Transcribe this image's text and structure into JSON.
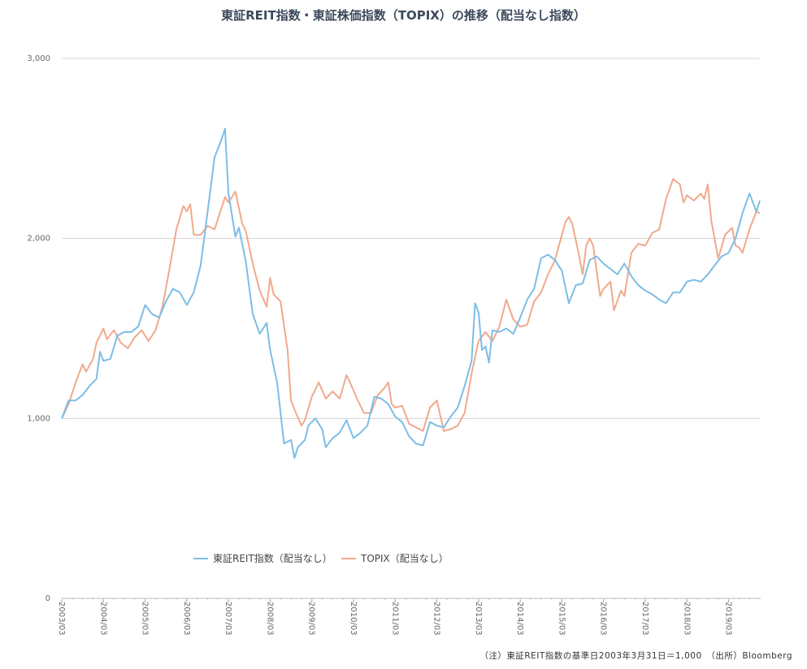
{
  "chart_data": {
    "type": "line",
    "title": "東証REIT指数・東証株価指数（TOPIX）の推移（配当なし指数）",
    "note": "（注）東証REIT指数の基準日2003年3月31日＝1,000　（出所）Bloomberg",
    "ylim": [
      0,
      3000
    ],
    "y_ticks": [
      0,
      1000,
      2000,
      3000
    ],
    "y_tick_labels": [
      "0",
      "1,000",
      "2,000",
      "3,000"
    ],
    "x_tick_labels": [
      "2003/03",
      "2004/03",
      "2005/03",
      "2006/03",
      "2007/03",
      "2008/03",
      "2009/03",
      "2010/03",
      "2011/03",
      "2012/03",
      "2013/03",
      "2014/03",
      "2015/03",
      "2016/03",
      "2017/03",
      "2018/03",
      "2019/03"
    ],
    "x_start": "2003-03",
    "x_end": "2019-12",
    "grid": true,
    "legend_position": "bottom",
    "series": [
      {
        "name": "東証REIT指数（配当なし）",
        "color": "#7dbde6",
        "points": [
          [
            "2003-03",
            1000
          ],
          [
            "2003-05",
            1100
          ],
          [
            "2003-07",
            1100
          ],
          [
            "2003-09",
            1130
          ],
          [
            "2003-11",
            1180
          ],
          [
            "2004-01",
            1220
          ],
          [
            "2004-02",
            1370
          ],
          [
            "2004-03",
            1320
          ],
          [
            "2004-05",
            1330
          ],
          [
            "2004-07",
            1460
          ],
          [
            "2004-09",
            1480
          ],
          [
            "2004-11",
            1480
          ],
          [
            "2005-01",
            1510
          ],
          [
            "2005-03",
            1630
          ],
          [
            "2005-05",
            1580
          ],
          [
            "2005-07",
            1560
          ],
          [
            "2005-09",
            1650
          ],
          [
            "2005-11",
            1720
          ],
          [
            "2006-01",
            1700
          ],
          [
            "2006-03",
            1630
          ],
          [
            "2006-05",
            1700
          ],
          [
            "2006-07",
            1850
          ],
          [
            "2006-09",
            2150
          ],
          [
            "2006-11",
            2450
          ],
          [
            "2007-01",
            2550
          ],
          [
            "2007-02",
            2610
          ],
          [
            "2007-03",
            2250
          ],
          [
            "2007-05",
            2010
          ],
          [
            "2007-06",
            2060
          ],
          [
            "2007-08",
            1870
          ],
          [
            "2007-10",
            1580
          ],
          [
            "2007-12",
            1470
          ],
          [
            "2008-02",
            1530
          ],
          [
            "2008-03",
            1380
          ],
          [
            "2008-05",
            1200
          ],
          [
            "2008-07",
            860
          ],
          [
            "2008-09",
            880
          ],
          [
            "2008-10",
            780
          ],
          [
            "2008-11",
            840
          ],
          [
            "2009-01",
            880
          ],
          [
            "2009-02",
            960
          ],
          [
            "2009-04",
            1000
          ],
          [
            "2009-06",
            940
          ],
          [
            "2009-07",
            840
          ],
          [
            "2009-09",
            890
          ],
          [
            "2009-11",
            920
          ],
          [
            "2010-01",
            990
          ],
          [
            "2010-03",
            890
          ],
          [
            "2010-05",
            920
          ],
          [
            "2010-07",
            960
          ],
          [
            "2010-09",
            1120
          ],
          [
            "2010-11",
            1110
          ],
          [
            "2011-01",
            1080
          ],
          [
            "2011-03",
            1010
          ],
          [
            "2011-05",
            980
          ],
          [
            "2011-07",
            900
          ],
          [
            "2011-09",
            860
          ],
          [
            "2011-11",
            850
          ],
          [
            "2012-01",
            980
          ],
          [
            "2012-03",
            960
          ],
          [
            "2012-05",
            950
          ],
          [
            "2012-07",
            1010
          ],
          [
            "2012-09",
            1060
          ],
          [
            "2012-11",
            1180
          ],
          [
            "2013-01",
            1320
          ],
          [
            "2013-02",
            1640
          ],
          [
            "2013-03",
            1590
          ],
          [
            "2013-04",
            1380
          ],
          [
            "2013-05",
            1400
          ],
          [
            "2013-06",
            1310
          ],
          [
            "2013-07",
            1490
          ],
          [
            "2013-09",
            1480
          ],
          [
            "2013-11",
            1500
          ],
          [
            "2014-01",
            1470
          ],
          [
            "2014-03",
            1560
          ],
          [
            "2014-05",
            1660
          ],
          [
            "2014-07",
            1720
          ],
          [
            "2014-09",
            1890
          ],
          [
            "2014-11",
            1910
          ],
          [
            "2015-01",
            1880
          ],
          [
            "2015-03",
            1820
          ],
          [
            "2015-05",
            1640
          ],
          [
            "2015-07",
            1740
          ],
          [
            "2015-09",
            1750
          ],
          [
            "2015-11",
            1880
          ],
          [
            "2016-01",
            1900
          ],
          [
            "2016-03",
            1860
          ],
          [
            "2016-05",
            1830
          ],
          [
            "2016-07",
            1800
          ],
          [
            "2016-09",
            1860
          ],
          [
            "2016-11",
            1790
          ],
          [
            "2017-01",
            1740
          ],
          [
            "2017-03",
            1710
          ],
          [
            "2017-05",
            1690
          ],
          [
            "2017-07",
            1660
          ],
          [
            "2017-09",
            1640
          ],
          [
            "2017-11",
            1700
          ],
          [
            "2018-01",
            1700
          ],
          [
            "2018-03",
            1760
          ],
          [
            "2018-05",
            1770
          ],
          [
            "2018-07",
            1760
          ],
          [
            "2018-09",
            1800
          ],
          [
            "2018-11",
            1850
          ],
          [
            "2019-01",
            1900
          ],
          [
            "2019-03",
            1920
          ],
          [
            "2019-05",
            2000
          ],
          [
            "2019-07",
            2140
          ],
          [
            "2019-09",
            2250
          ],
          [
            "2019-11",
            2150
          ],
          [
            "2019-12",
            2210
          ]
        ]
      },
      {
        "name": "TOPIX（配当なし）",
        "color": "#f0a98c",
        "points": [
          [
            "2003-03",
            1000
          ],
          [
            "2003-05",
            1080
          ],
          [
            "2003-07",
            1200
          ],
          [
            "2003-09",
            1300
          ],
          [
            "2003-10",
            1260
          ],
          [
            "2003-12",
            1330
          ],
          [
            "2004-01",
            1420
          ],
          [
            "2004-03",
            1500
          ],
          [
            "2004-04",
            1440
          ],
          [
            "2004-06",
            1490
          ],
          [
            "2004-08",
            1420
          ],
          [
            "2004-10",
            1390
          ],
          [
            "2004-12",
            1450
          ],
          [
            "2005-02",
            1490
          ],
          [
            "2005-04",
            1430
          ],
          [
            "2005-06",
            1490
          ],
          [
            "2005-08",
            1620
          ],
          [
            "2005-10",
            1830
          ],
          [
            "2005-12",
            2050
          ],
          [
            "2006-02",
            2180
          ],
          [
            "2006-03",
            2150
          ],
          [
            "2006-04",
            2190
          ],
          [
            "2006-05",
            2020
          ],
          [
            "2006-07",
            2020
          ],
          [
            "2006-09",
            2070
          ],
          [
            "2006-11",
            2050
          ],
          [
            "2007-01",
            2170
          ],
          [
            "2007-02",
            2230
          ],
          [
            "2007-03",
            2200
          ],
          [
            "2007-05",
            2260
          ],
          [
            "2007-07",
            2080
          ],
          [
            "2007-08",
            2040
          ],
          [
            "2007-10",
            1860
          ],
          [
            "2007-12",
            1710
          ],
          [
            "2008-02",
            1620
          ],
          [
            "2008-03",
            1780
          ],
          [
            "2008-04",
            1690
          ],
          [
            "2008-06",
            1650
          ],
          [
            "2008-08",
            1380
          ],
          [
            "2008-09",
            1100
          ],
          [
            "2008-10",
            1050
          ],
          [
            "2008-12",
            960
          ],
          [
            "2009-01",
            990
          ],
          [
            "2009-03",
            1120
          ],
          [
            "2009-05",
            1200
          ],
          [
            "2009-07",
            1110
          ],
          [
            "2009-09",
            1150
          ],
          [
            "2009-11",
            1110
          ],
          [
            "2010-01",
            1240
          ],
          [
            "2010-02",
            1200
          ],
          [
            "2010-04",
            1110
          ],
          [
            "2010-06",
            1030
          ],
          [
            "2010-08",
            1030
          ],
          [
            "2010-10",
            1130
          ],
          [
            "2010-12",
            1170
          ],
          [
            "2011-01",
            1200
          ],
          [
            "2011-02",
            1080
          ],
          [
            "2011-03",
            1060
          ],
          [
            "2011-05",
            1070
          ],
          [
            "2011-07",
            970
          ],
          [
            "2011-09",
            950
          ],
          [
            "2011-11",
            930
          ],
          [
            "2012-01",
            1060
          ],
          [
            "2012-03",
            1100
          ],
          [
            "2012-05",
            930
          ],
          [
            "2012-07",
            940
          ],
          [
            "2012-09",
            960
          ],
          [
            "2012-11",
            1030
          ],
          [
            "2013-01",
            1250
          ],
          [
            "2013-03",
            1430
          ],
          [
            "2013-05",
            1480
          ],
          [
            "2013-07",
            1430
          ],
          [
            "2013-09",
            1510
          ],
          [
            "2013-11",
            1660
          ],
          [
            "2014-01",
            1550
          ],
          [
            "2014-03",
            1510
          ],
          [
            "2014-05",
            1520
          ],
          [
            "2014-07",
            1650
          ],
          [
            "2014-09",
            1700
          ],
          [
            "2014-11",
            1800
          ],
          [
            "2015-01",
            1880
          ],
          [
            "2015-03",
            2020
          ],
          [
            "2015-04",
            2090
          ],
          [
            "2015-05",
            2120
          ],
          [
            "2015-06",
            2080
          ],
          [
            "2015-08",
            1900
          ],
          [
            "2015-09",
            1800
          ],
          [
            "2015-10",
            1960
          ],
          [
            "2015-11",
            2000
          ],
          [
            "2015-12",
            1960
          ],
          [
            "2016-02",
            1680
          ],
          [
            "2016-03",
            1720
          ],
          [
            "2016-05",
            1760
          ],
          [
            "2016-06",
            1600
          ],
          [
            "2016-08",
            1710
          ],
          [
            "2016-09",
            1680
          ],
          [
            "2016-11",
            1920
          ],
          [
            "2017-01",
            1970
          ],
          [
            "2017-03",
            1960
          ],
          [
            "2017-05",
            2030
          ],
          [
            "2017-07",
            2050
          ],
          [
            "2017-09",
            2220
          ],
          [
            "2017-11",
            2330
          ],
          [
            "2018-01",
            2300
          ],
          [
            "2018-02",
            2200
          ],
          [
            "2018-03",
            2240
          ],
          [
            "2018-05",
            2210
          ],
          [
            "2018-07",
            2250
          ],
          [
            "2018-08",
            2220
          ],
          [
            "2018-09",
            2300
          ],
          [
            "2018-10",
            2100
          ],
          [
            "2018-12",
            1890
          ],
          [
            "2019-02",
            2020
          ],
          [
            "2019-04",
            2060
          ],
          [
            "2019-05",
            1960
          ],
          [
            "2019-06",
            1950
          ],
          [
            "2019-07",
            1920
          ],
          [
            "2019-09",
            2050
          ],
          [
            "2019-11",
            2150
          ],
          [
            "2019-12",
            2140
          ]
        ]
      }
    ]
  }
}
